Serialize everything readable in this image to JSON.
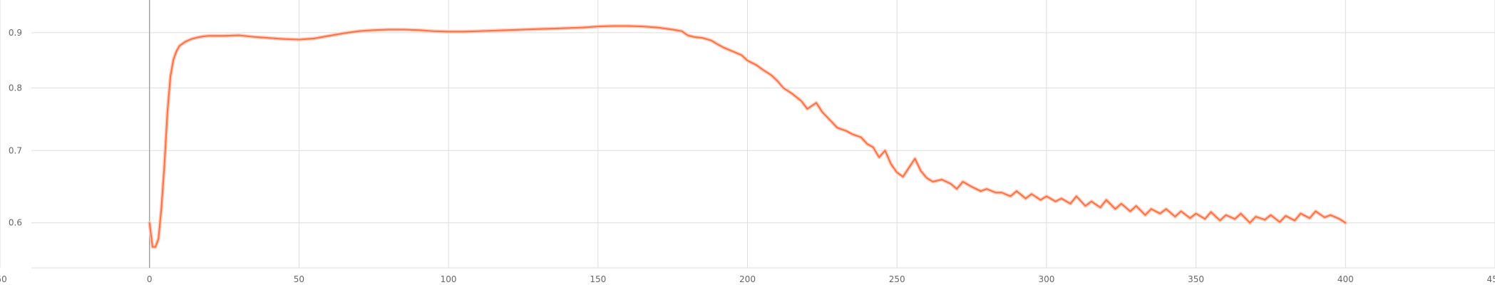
{
  "chart_data": {
    "type": "line",
    "title": "",
    "xlabel": "",
    "ylabel": "",
    "xlim": [
      -50,
      450
    ],
    "ylim": [
      0.545,
      0.965
    ],
    "x_ticks": [
      -50,
      0,
      50,
      100,
      150,
      200,
      250,
      300,
      350,
      400,
      450
    ],
    "x_tick_labels": [
      "-50",
      "0",
      "50",
      "100",
      "150",
      "200",
      "250",
      "300",
      "350",
      "400",
      "450"
    ],
    "y_ticks": [
      0.6,
      0.7,
      0.8,
      0.9
    ],
    "y_tick_labels": [
      "0.6",
      "0.7",
      "0.8",
      "0.9"
    ],
    "grid": true,
    "log_scale_y": true,
    "colors": {
      "line": "#ff7043",
      "raw": "#ffccbc",
      "grid": "#dddddd",
      "axis": "#999999"
    },
    "series": [
      {
        "x": [
          0,
          1,
          2,
          3,
          4,
          5,
          6,
          7,
          8,
          9,
          10,
          12,
          14,
          16,
          18,
          20,
          25,
          30,
          35,
          40,
          45,
          50,
          55,
          60,
          65,
          70,
          75,
          80,
          85,
          90,
          95,
          100,
          105,
          110,
          115,
          120,
          125,
          130,
          135,
          140,
          145,
          150,
          155,
          160,
          165,
          170,
          175,
          178,
          180,
          182,
          185,
          188,
          190,
          192,
          195,
          198,
          200,
          203,
          205,
          208,
          210,
          212,
          215,
          218,
          220,
          223,
          225,
          228,
          230,
          233,
          235,
          238,
          240,
          242,
          244,
          246,
          248,
          250,
          252,
          254,
          256,
          258,
          260,
          262,
          265,
          268,
          270,
          272,
          275,
          278,
          280,
          283,
          285,
          288,
          290,
          293,
          295,
          298,
          300,
          303,
          305,
          308,
          310,
          313,
          315,
          318,
          320,
          323,
          325,
          328,
          330,
          333,
          335,
          338,
          340,
          343,
          345,
          348,
          350,
          353,
          355,
          358,
          360,
          363,
          365,
          368,
          370,
          373,
          375,
          378,
          380,
          383,
          385,
          388,
          390,
          393,
          395,
          398,
          400
        ],
        "values": [
          0.6,
          0.57,
          0.57,
          0.58,
          0.62,
          0.68,
          0.76,
          0.82,
          0.85,
          0.865,
          0.875,
          0.883,
          0.888,
          0.891,
          0.893,
          0.894,
          0.894,
          0.895,
          0.892,
          0.89,
          0.888,
          0.887,
          0.889,
          0.894,
          0.899,
          0.903,
          0.905,
          0.906,
          0.906,
          0.905,
          0.903,
          0.902,
          0.902,
          0.903,
          0.904,
          0.905,
          0.906,
          0.907,
          0.908,
          0.909,
          0.91,
          0.912,
          0.913,
          0.913,
          0.912,
          0.91,
          0.906,
          0.903,
          0.895,
          0.892,
          0.89,
          0.885,
          0.878,
          0.872,
          0.865,
          0.858,
          0.848,
          0.84,
          0.832,
          0.822,
          0.812,
          0.8,
          0.79,
          0.778,
          0.765,
          0.775,
          0.76,
          0.745,
          0.735,
          0.73,
          0.725,
          0.72,
          0.71,
          0.705,
          0.69,
          0.7,
          0.68,
          0.668,
          0.662,
          0.675,
          0.688,
          0.67,
          0.66,
          0.655,
          0.658,
          0.652,
          0.645,
          0.655,
          0.648,
          0.642,
          0.645,
          0.64,
          0.64,
          0.635,
          0.642,
          0.632,
          0.638,
          0.63,
          0.635,
          0.628,
          0.632,
          0.625,
          0.635,
          0.622,
          0.628,
          0.62,
          0.63,
          0.618,
          0.625,
          0.615,
          0.622,
          0.61,
          0.618,
          0.612,
          0.618,
          0.608,
          0.615,
          0.606,
          0.612,
          0.605,
          0.614,
          0.603,
          0.61,
          0.605,
          0.612,
          0.6,
          0.608,
          0.604,
          0.61,
          0.601,
          0.609,
          0.603,
          0.612,
          0.606,
          0.615,
          0.607,
          0.61,
          0.605,
          0.6
        ]
      }
    ]
  }
}
